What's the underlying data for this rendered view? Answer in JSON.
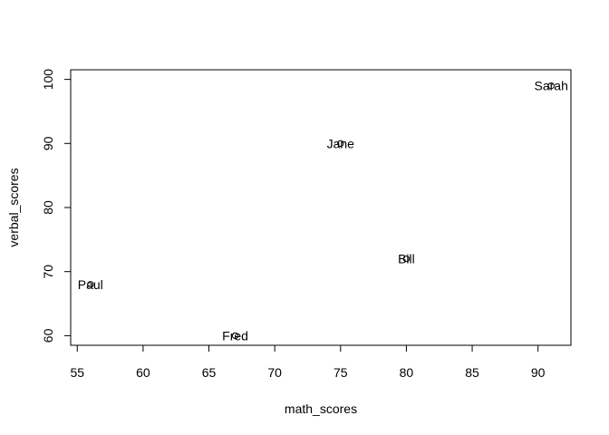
{
  "chart_data": {
    "type": "scatter",
    "title": "",
    "xlabel": "math_scores",
    "ylabel": "verbal_scores",
    "xlim": [
      54.5,
      92.5
    ],
    "ylim": [
      58.5,
      101.5
    ],
    "xticks": [
      55,
      60,
      65,
      70,
      75,
      80,
      85,
      90
    ],
    "yticks": [
      60,
      70,
      80,
      90,
      100
    ],
    "grid": false,
    "marker": "open-circle",
    "points": [
      {
        "label": "Paul",
        "x": 56,
        "y": 68
      },
      {
        "label": "Fred",
        "x": 67,
        "y": 60
      },
      {
        "label": "Jane",
        "x": 75,
        "y": 90
      },
      {
        "label": "Bill",
        "x": 80,
        "y": 72
      },
      {
        "label": "Sarah",
        "x": 91,
        "y": 99
      }
    ]
  }
}
